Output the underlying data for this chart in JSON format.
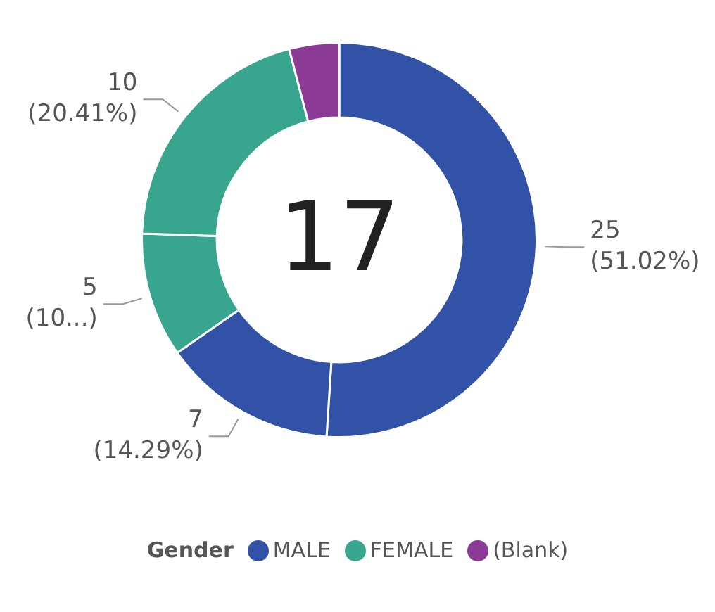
{
  "chart_data": {
    "type": "donut",
    "categories": [
      "MALE",
      null,
      "FEMALE",
      null,
      "(Blank)"
    ],
    "values": [
      25,
      7,
      5,
      10,
      2
    ],
    "colors": [
      "#3152a6",
      "#3152a6",
      "#38a58e",
      "#38a58e",
      "#8b3a96"
    ],
    "value_labels": [
      "25\n(51.02%)",
      "7\n(14.29%)",
      "5\n(10...)",
      "10\n(20.41%)",
      null
    ],
    "annotations": [
      "17"
    ],
    "legend_title": "Gender",
    "legend": "bottom"
  }
}
